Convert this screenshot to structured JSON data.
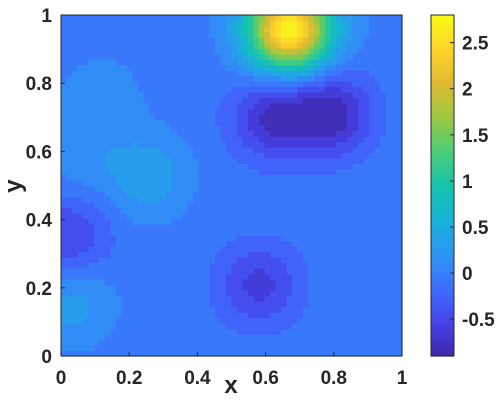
{
  "chart_data": {
    "type": "heatmap",
    "style": "filled-contour",
    "colormap": "parula",
    "title": "",
    "xlabel": "x",
    "ylabel": "y",
    "xlim": [
      0,
      1
    ],
    "ylim": [
      0,
      1
    ],
    "x_ticks": [
      "0",
      "0.2",
      "0.4",
      "0.6",
      "0.8",
      "1"
    ],
    "y_ticks": [
      "0",
      "0.2",
      "0.4",
      "0.6",
      "0.8",
      "1"
    ],
    "colorbar": {
      "range": [
        -0.9,
        2.8
      ],
      "ticks": [
        "-0.5",
        "0",
        "0.5",
        "1",
        "1.5",
        "2",
        "2.5"
      ],
      "tick_values": [
        -0.5,
        0,
        0.5,
        1,
        1.5,
        2,
        2.5
      ]
    },
    "base_value": -0.05,
    "features": [
      {
        "x": 0.67,
        "y": 0.96,
        "value": 2.8
      },
      {
        "x": 0.62,
        "y": 0.7,
        "value": -0.75
      },
      {
        "x": 0.79,
        "y": 0.71,
        "value": -0.85
      },
      {
        "x": 0.58,
        "y": 0.21,
        "value": -0.6
      },
      {
        "x": 0.02,
        "y": 0.35,
        "value": -0.55
      },
      {
        "x": 0.03,
        "y": 0.16,
        "value": 0.3
      },
      {
        "x": 0.25,
        "y": 0.53,
        "value": 0.35
      },
      {
        "x": 0.12,
        "y": 0.76,
        "value": 0.12
      },
      {
        "x": 0.05,
        "y": 0.6,
        "value": 0.15
      },
      {
        "x": 0.88,
        "y": 0.42,
        "value": -0.02
      }
    ]
  }
}
